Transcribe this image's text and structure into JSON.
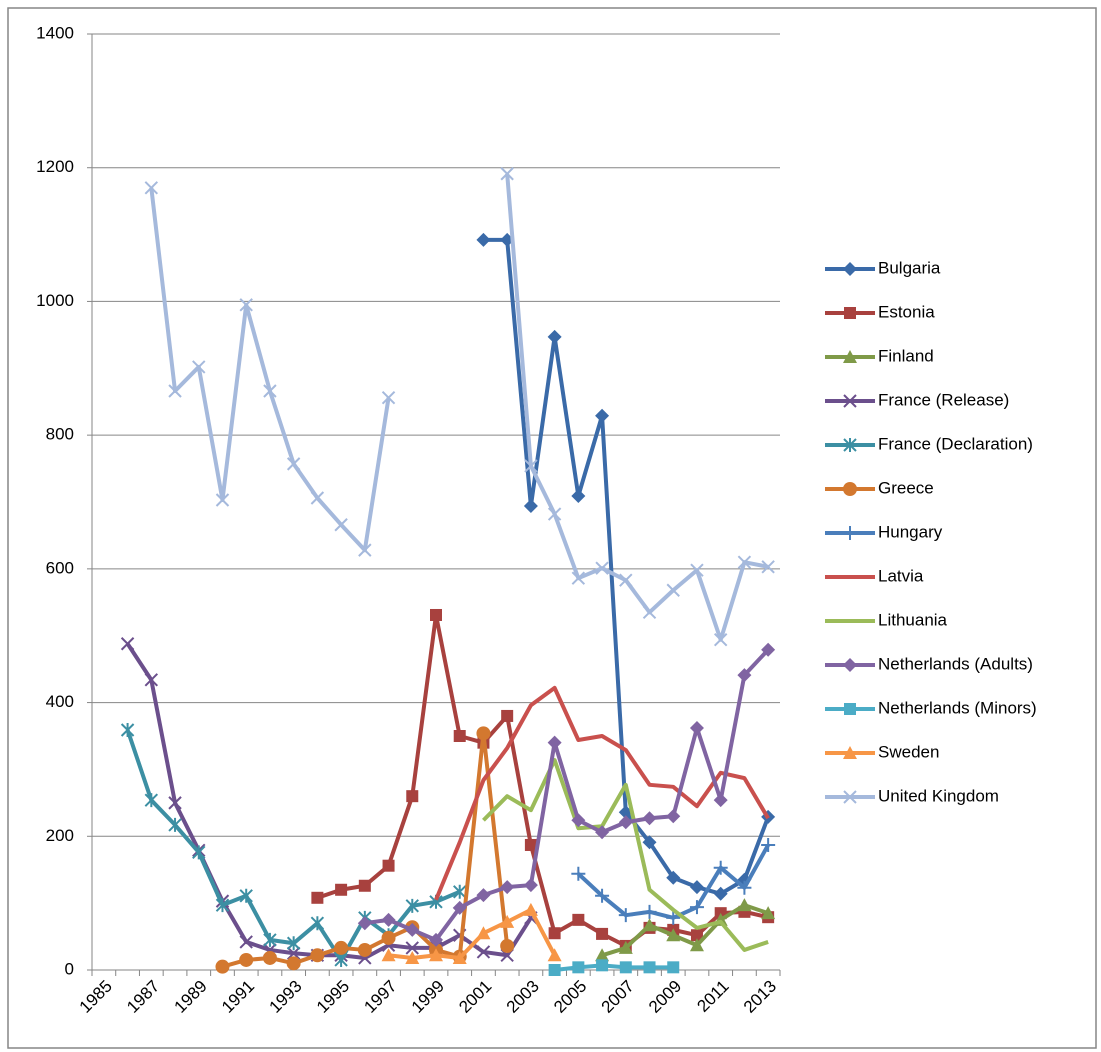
{
  "chart_data": {
    "type": "line",
    "categories": [
      "1985",
      null,
      "1987",
      null,
      "1989",
      null,
      "1991",
      null,
      "1993",
      null,
      "1995",
      null,
      "1997",
      null,
      "1999",
      null,
      "2001",
      null,
      "2003",
      null,
      "2005",
      null,
      "2007",
      null,
      "2009",
      null,
      "2011",
      null,
      "2013"
    ],
    "ylim": [
      0,
      1400
    ],
    "yticks": [
      0,
      200,
      400,
      600,
      800,
      1000,
      1200,
      1400
    ],
    "grid": true,
    "legend": "right",
    "series": [
      {
        "name": "Bulgaria",
        "color": "#3a6aa8",
        "marker": "diamond",
        "values": [
          null,
          null,
          null,
          null,
          null,
          null,
          null,
          null,
          null,
          null,
          null,
          null,
          null,
          null,
          null,
          null,
          1092,
          1092,
          694,
          947,
          709,
          829,
          236,
          191,
          138,
          124,
          114,
          135,
          229
        ]
      },
      {
        "name": "Estonia",
        "color": "#a8413e",
        "marker": "square",
        "values": [
          null,
          null,
          null,
          null,
          null,
          null,
          null,
          null,
          null,
          108,
          120,
          126,
          156,
          260,
          531,
          350,
          340,
          380,
          187,
          55,
          75,
          54,
          36,
          63,
          60,
          52,
          85,
          87,
          79
        ]
      },
      {
        "name": "Finland",
        "color": "#7f9a48",
        "marker": "triangle",
        "values": [
          null,
          null,
          null,
          null,
          null,
          null,
          null,
          null,
          null,
          null,
          null,
          null,
          null,
          null,
          null,
          null,
          null,
          null,
          null,
          null,
          null,
          22,
          33,
          67,
          52,
          37,
          75,
          97,
          85
        ]
      },
      {
        "name": "France (Release)",
        "color": "#6b4f8c",
        "marker": "x",
        "values": [
          null,
          488,
          434,
          250,
          179,
          103,
          42,
          30,
          25,
          22,
          22,
          18,
          37,
          33,
          33,
          52,
          27,
          22,
          78,
          null,
          null,
          null,
          null,
          null,
          null,
          null,
          null,
          null,
          null
        ]
      },
      {
        "name": "France (Declaration)",
        "color": "#3c8fa3",
        "marker": "star",
        "values": [
          null,
          359,
          254,
          217,
          176,
          97,
          111,
          45,
          40,
          70,
          15,
          78,
          52,
          96,
          102,
          117,
          null,
          null,
          null,
          null,
          null,
          null,
          null,
          null,
          null,
          null,
          null,
          null,
          null
        ]
      },
      {
        "name": "Greece",
        "color": "#d3782f",
        "marker": "circle",
        "values": [
          null,
          null,
          null,
          null,
          null,
          5,
          15,
          18,
          10,
          22,
          33,
          30,
          48,
          64,
          30,
          20,
          354,
          36,
          null,
          null,
          null,
          null,
          null,
          null,
          null,
          null,
          null,
          null,
          null
        ]
      },
      {
        "name": "Hungary",
        "color": "#4a7ebb",
        "marker": "plus",
        "values": [
          null,
          null,
          null,
          null,
          null,
          null,
          null,
          null,
          null,
          null,
          null,
          null,
          null,
          null,
          null,
          null,
          null,
          null,
          null,
          null,
          144,
          111,
          82,
          87,
          78,
          94,
          153,
          123,
          187
        ]
      },
      {
        "name": "Latvia",
        "color": "#c9504d",
        "marker": "none",
        "values": [
          null,
          null,
          null,
          null,
          null,
          null,
          null,
          null,
          null,
          null,
          null,
          null,
          null,
          null,
          105,
          191,
          284,
          332,
          396,
          422,
          344,
          350,
          329,
          277,
          274,
          245,
          295,
          287,
          227
        ]
      },
      {
        "name": "Lithuania",
        "color": "#9bbb59",
        "marker": "none",
        "values": [
          null,
          null,
          null,
          null,
          null,
          null,
          null,
          null,
          null,
          null,
          null,
          null,
          null,
          null,
          null,
          null,
          224,
          260,
          239,
          314,
          212,
          215,
          277,
          120,
          90,
          63,
          72,
          30,
          42
        ]
      },
      {
        "name": "Netherlands (Adults)",
        "color": "#8064a2",
        "marker": "diamond",
        "values": [
          null,
          null,
          null,
          null,
          null,
          null,
          null,
          null,
          null,
          null,
          null,
          70,
          75,
          60,
          45,
          93,
          112,
          124,
          127,
          340,
          224,
          206,
          221,
          227,
          230,
          362,
          254,
          441,
          479
        ]
      },
      {
        "name": "Netherlands (Minors)",
        "color": "#4bacc6",
        "marker": "square",
        "values": [
          null,
          null,
          null,
          null,
          null,
          null,
          null,
          null,
          null,
          null,
          null,
          null,
          null,
          null,
          null,
          null,
          null,
          null,
          null,
          0,
          4,
          7,
          4,
          4,
          4,
          null,
          null,
          null,
          null
        ]
      },
      {
        "name": "Sweden",
        "color": "#f79646",
        "marker": "triangle",
        "values": [
          null,
          null,
          null,
          null,
          null,
          null,
          null,
          null,
          null,
          null,
          null,
          null,
          22,
          18,
          22,
          18,
          55,
          72,
          90,
          22,
          null,
          null,
          null,
          null,
          null,
          null,
          null,
          null,
          null
        ]
      },
      {
        "name": "United Kingdom",
        "color": "#a5b9dc",
        "marker": "x",
        "values": [
          null,
          null,
          1170,
          866,
          902,
          703,
          995,
          866,
          757,
          706,
          666,
          628,
          856,
          null,
          null,
          null,
          null,
          1191,
          754,
          682,
          586,
          601,
          583,
          535,
          568,
          598,
          494,
          610,
          603
        ]
      }
    ]
  }
}
